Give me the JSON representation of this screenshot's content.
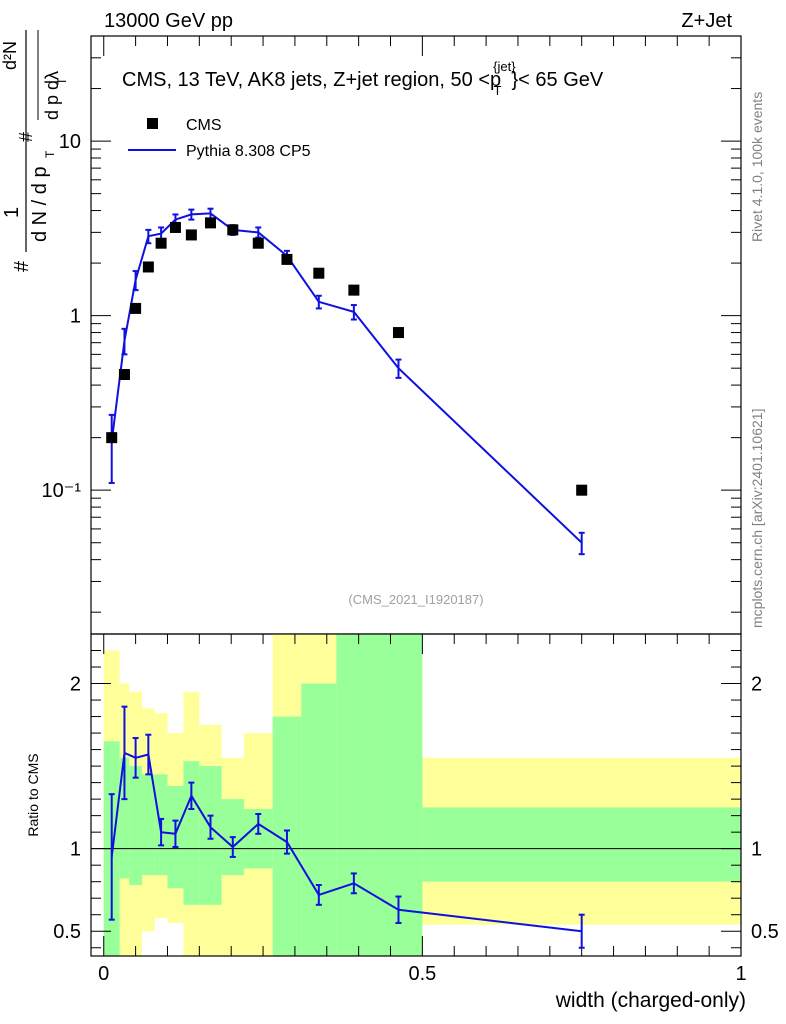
{
  "header": {
    "left": "13000 GeV pp",
    "right": "Z+Jet"
  },
  "side_labels": {
    "rivet": "Rivet 4.1.0,  100k events",
    "mcplots": "mcplots.cern.ch [arXiv:2401.10621]"
  },
  "watermark": "(CMS_2021_I1920187)",
  "chart_data": [
    {
      "type": "scatter",
      "panel": "main",
      "title": "CMS, 13 TeV, AK8 jets, Z+jet region, 50 <p_T^{jet}< 65 GeV",
      "title_parts": {
        "pre": "CMS, 13 TeV, AK8 jets, Z+jet region, 50 <p",
        "sup": "{jet}",
        "sub": "T",
        "post": "}< 65 GeV"
      },
      "ylabel_text": {
        "hash": "#",
        "one": "1",
        "dN_dpT": "d N / d p",
        "sub_T": "T",
        "d2N": "d²N",
        "dpT_dlambda": "d p  dλ"
      },
      "ylabel": "1/dN/dpT d2N/dpT dlambda",
      "yscale": "log",
      "ylim": [
        0.015,
        40
      ],
      "xlim": [
        -0.02,
        1.0
      ],
      "y_ticks": [
        "10",
        "1",
        "10⁻¹"
      ],
      "y_tick_values": [
        10,
        1,
        0.1
      ],
      "legend": [
        "CMS",
        "Pythia 8.308 CP5"
      ],
      "series": [
        {
          "name": "CMS",
          "marker": "square",
          "color": "#000000",
          "x": [
            0.0125,
            0.0325,
            0.05,
            0.07,
            0.09,
            0.1125,
            0.1375,
            0.1675,
            0.2025,
            0.2425,
            0.2875,
            0.3375,
            0.3925,
            0.4625,
            0.75
          ],
          "y": [
            0.2,
            0.46,
            1.1,
            1.9,
            2.6,
            3.2,
            2.9,
            3.4,
            3.1,
            2.6,
            2.1,
            1.75,
            1.4,
            0.8,
            0.1
          ]
        },
        {
          "name": "Pythia 8.308 CP5",
          "marker": "line",
          "color": "#1010e0",
          "x": [
            0.0125,
            0.0325,
            0.05,
            0.07,
            0.09,
            0.1125,
            0.1375,
            0.1675,
            0.2025,
            0.2425,
            0.2875,
            0.3375,
            0.3925,
            0.4625,
            0.75
          ],
          "y": [
            0.19,
            0.72,
            1.6,
            2.85,
            2.95,
            3.55,
            3.8,
            3.85,
            3.1,
            3.0,
            2.2,
            1.2,
            1.05,
            0.5,
            0.05
          ],
          "yerr": [
            0.08,
            0.12,
            0.2,
            0.25,
            0.25,
            0.25,
            0.25,
            0.25,
            0.2,
            0.2,
            0.15,
            0.1,
            0.1,
            0.06,
            0.007
          ]
        }
      ]
    },
    {
      "type": "line",
      "panel": "ratio",
      "ylabel": "Ratio to CMS",
      "xlabel": "width (charged-only)",
      "ylim": [
        0.35,
        2.3
      ],
      "xlim": [
        -0.02,
        1.0
      ],
      "y_ticks": [
        "2",
        "1",
        "0.5"
      ],
      "y_tick_values": [
        2,
        1,
        0.5
      ],
      "x_ticks": [
        "0",
        "0.5",
        "1"
      ],
      "x_tick_values": [
        0,
        0.5,
        1
      ],
      "bands": {
        "edges": [
          0,
          0.025,
          0.04,
          0.06,
          0.08,
          0.1,
          0.125,
          0.15,
          0.185,
          0.22,
          0.265,
          0.31,
          0.365,
          0.42,
          0.5,
          1.0
        ],
        "green_lo": [
          0.35,
          0.82,
          0.78,
          0.84,
          0.84,
          0.76,
          0.66,
          0.66,
          0.84,
          0.88,
          0.35,
          0.35,
          0.35,
          0.35,
          0.8
        ],
        "green_hi": [
          1.65,
          1.55,
          1.5,
          1.45,
          1.45,
          1.38,
          1.53,
          1.5,
          1.3,
          1.24,
          1.8,
          2.0,
          2.3,
          2.3,
          1.25
        ],
        "yellow_lo": [
          0.35,
          0.35,
          0.35,
          0.5,
          0.58,
          0.55,
          0.35,
          0.35,
          0.35,
          0.35,
          0.35,
          0.35,
          0.35,
          0.35,
          0.54
        ],
        "yellow_hi": [
          2.2,
          2.0,
          1.95,
          1.85,
          1.82,
          1.7,
          1.95,
          1.75,
          1.55,
          1.7,
          2.3,
          2.3,
          2.3,
          2.3,
          1.55
        ],
        "green_color": "#99ff99",
        "yellow_color": "#ffff99"
      },
      "series": [
        {
          "name": "Pythia 8.308 CP5 / CMS",
          "color": "#1010e0",
          "x": [
            0.0125,
            0.0325,
            0.05,
            0.07,
            0.09,
            0.1125,
            0.1375,
            0.1675,
            0.2025,
            0.2425,
            0.2875,
            0.3375,
            0.3925,
            0.4625,
            0.75
          ],
          "y": [
            0.95,
            1.58,
            1.55,
            1.57,
            1.1,
            1.09,
            1.32,
            1.13,
            1.01,
            1.15,
            1.04,
            0.72,
            0.79,
            0.63,
            0.5
          ],
          "yerr": [
            0.38,
            0.28,
            0.12,
            0.12,
            0.08,
            0.08,
            0.08,
            0.07,
            0.06,
            0.06,
            0.07,
            0.06,
            0.06,
            0.08,
            0.1
          ]
        }
      ]
    }
  ]
}
